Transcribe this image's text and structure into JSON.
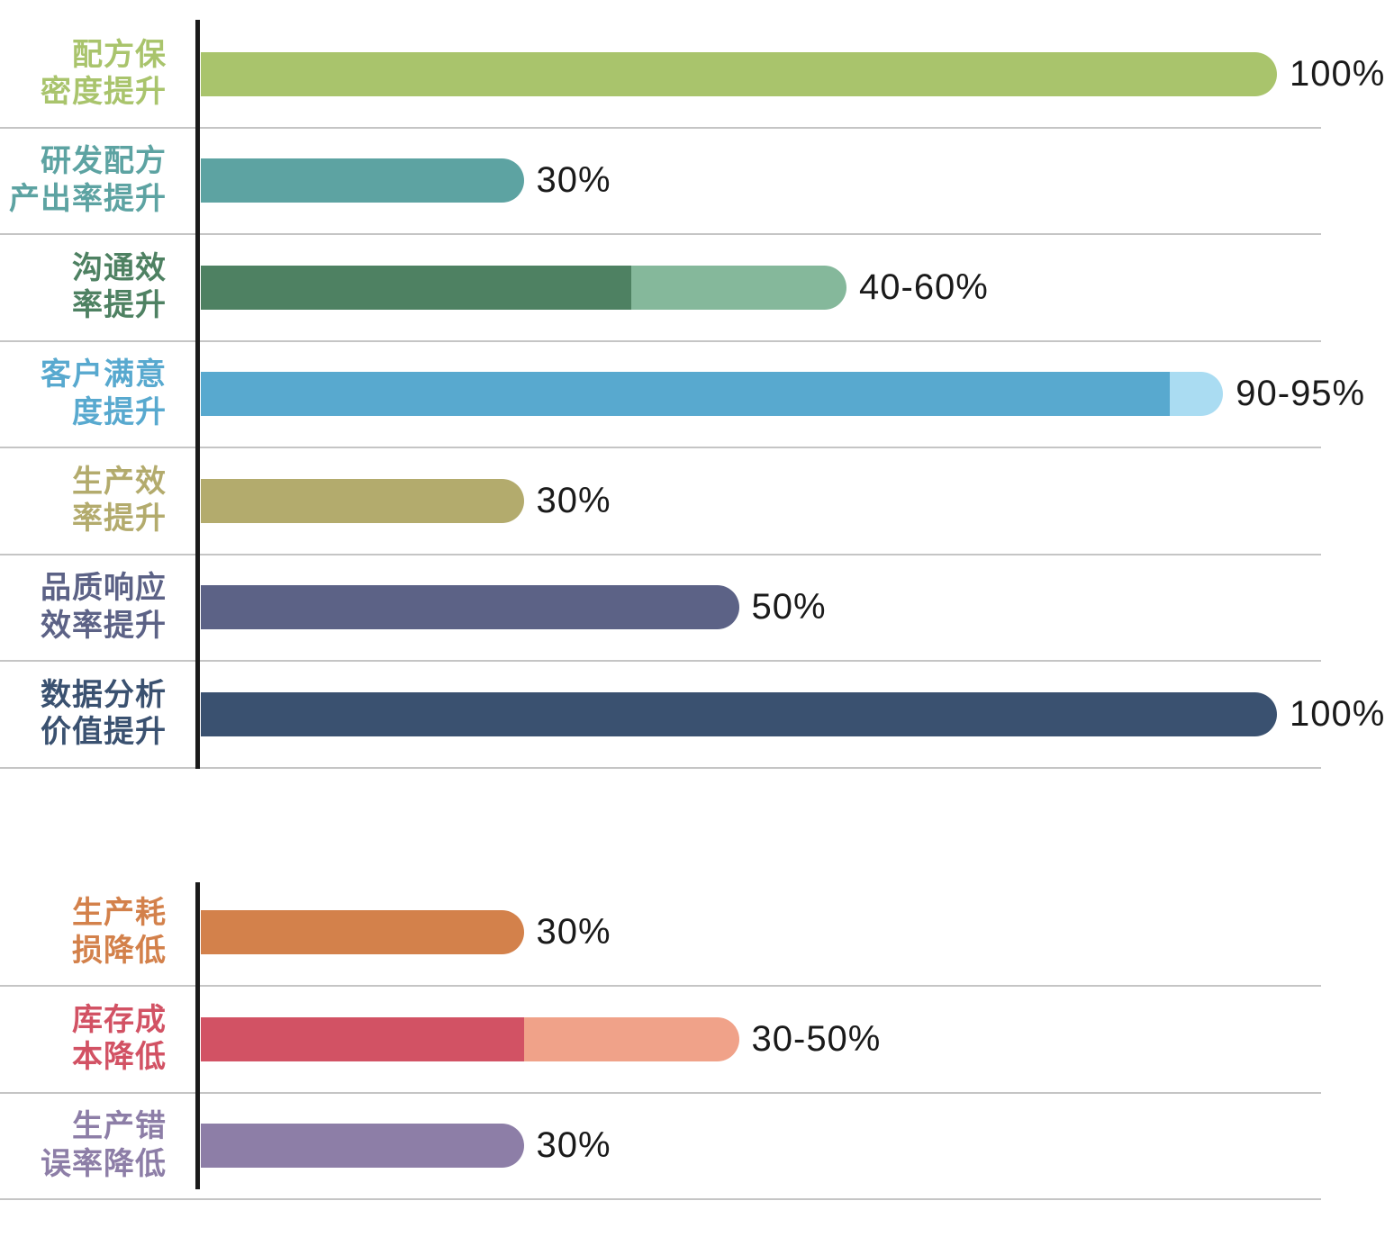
{
  "chart_data": {
    "type": "bar",
    "orientation": "horizontal",
    "title": "",
    "xlabel": "",
    "ylabel": "",
    "unit": "%",
    "xlim": [
      0,
      100
    ],
    "grid": false,
    "legend": false,
    "axis_color": "#1a1a1a",
    "separator_color": "#c5c5c5",
    "value_text_color": "#1a1a1a",
    "groups": [
      {
        "name": "improvements",
        "rows": [
          {
            "label": "配方保密度提升",
            "label_lines": "配方保\n密度提升",
            "value_label": "100%",
            "value_min": 100,
            "value_max": 100,
            "color": "#a9c46c",
            "color_light": null
          },
          {
            "label": "研发配方产出率提升",
            "label_lines": "研发配方\n产出率提升",
            "value_label": "30%",
            "value_min": 30,
            "value_max": 30,
            "color": "#5da3a2",
            "color_light": null
          },
          {
            "label": "沟通效率提升",
            "label_lines": "沟通效\n率提升",
            "value_label": "40-60%",
            "value_min": 40,
            "value_max": 60,
            "color": "#4e8162",
            "color_light": "#85b89b"
          },
          {
            "label": "客户满意度提升",
            "label_lines": "客户满意\n度提升",
            "value_label": "90-95%",
            "value_min": 90,
            "value_max": 95,
            "color": "#58a9cf",
            "color_light": "#aadcf2"
          },
          {
            "label": "生产效率提升",
            "label_lines": "生产效\n率提升",
            "value_label": "30%",
            "value_min": 30,
            "value_max": 30,
            "color": "#b3ab6d",
            "color_light": null
          },
          {
            "label": "品质响应效率提升",
            "label_lines": "品质响应\n效率提升",
            "value_label": "50%",
            "value_min": 50,
            "value_max": 50,
            "color": "#5c6286",
            "color_light": null
          },
          {
            "label": "数据分析价值提升",
            "label_lines": "数据分析\n价值提升",
            "value_label": "100%",
            "value_min": 100,
            "value_max": 100,
            "color": "#3a5170",
            "color_light": null
          }
        ]
      },
      {
        "name": "reductions",
        "rows": [
          {
            "label": "生产耗损降低",
            "label_lines": "生产耗\n损降低",
            "value_label": "30%",
            "value_min": 30,
            "value_max": 30,
            "color": "#d3814b",
            "color_light": null
          },
          {
            "label": "库存成本降低",
            "label_lines": "库存成\n本降低",
            "value_label": "30-50%",
            "value_min": 30,
            "value_max": 50,
            "color": "#d25264",
            "color_light": "#f0a289"
          },
          {
            "label": "生产错误率降低",
            "label_lines": "生产错\n误率降低",
            "value_label": "30%",
            "value_min": 30,
            "value_max": 30,
            "color": "#8d7ea7",
            "color_light": null
          }
        ]
      }
    ]
  }
}
